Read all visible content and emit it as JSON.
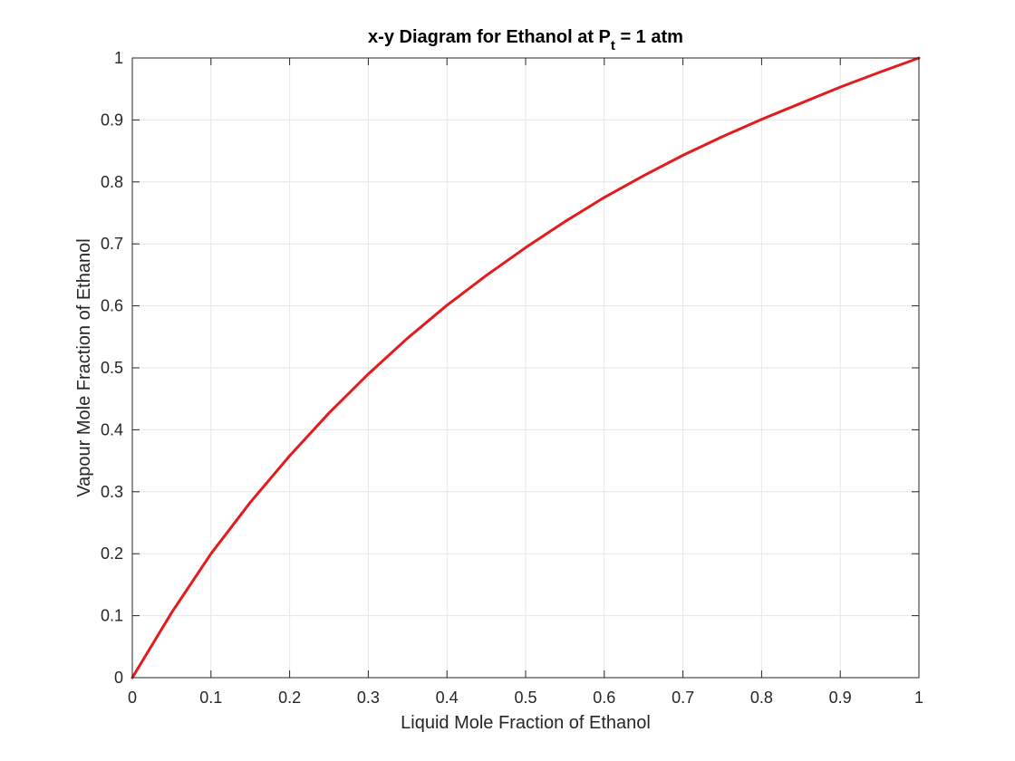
{
  "chart_data": {
    "type": "line",
    "title": {
      "main": "x-y Diagram for Ethanol at P",
      "subscript": "t",
      "suffix": " = 1 atm"
    },
    "xlabel": "Liquid Mole Fraction of Ethanol",
    "ylabel": "Vapour Mole Fraction of Ethanol",
    "xlim": [
      0,
      1
    ],
    "ylim": [
      0,
      1
    ],
    "xticks": [
      0,
      0.1,
      0.2,
      0.3,
      0.4,
      0.5,
      0.6,
      0.7,
      0.8,
      0.9,
      1
    ],
    "yticks": [
      0,
      0.1,
      0.2,
      0.3,
      0.4,
      0.5,
      0.6,
      0.7,
      0.8,
      0.9,
      1
    ],
    "xtick_labels": [
      "0",
      "0.1",
      "0.2",
      "0.3",
      "0.4",
      "0.5",
      "0.6",
      "0.7",
      "0.8",
      "0.9",
      "1"
    ],
    "ytick_labels": [
      "0",
      "0.1",
      "0.2",
      "0.3",
      "0.4",
      "0.5",
      "0.6",
      "0.7",
      "0.8",
      "0.9",
      "1"
    ],
    "grid": true,
    "legend": "none",
    "series": [
      {
        "color": "#e41a1c",
        "x": [
          0,
          0.05,
          0.1,
          0.15,
          0.2,
          0.25,
          0.3,
          0.35,
          0.4,
          0.45,
          0.5,
          0.55,
          0.6,
          0.65,
          0.7,
          0.75,
          0.8,
          0.85,
          0.9,
          0.95,
          1
        ],
        "y": [
          0,
          0.105,
          0.2,
          0.283,
          0.358,
          0.427,
          0.49,
          0.548,
          0.601,
          0.649,
          0.694,
          0.736,
          0.775,
          0.81,
          0.843,
          0.873,
          0.901,
          0.927,
          0.953,
          0.977,
          1
        ]
      }
    ]
  }
}
